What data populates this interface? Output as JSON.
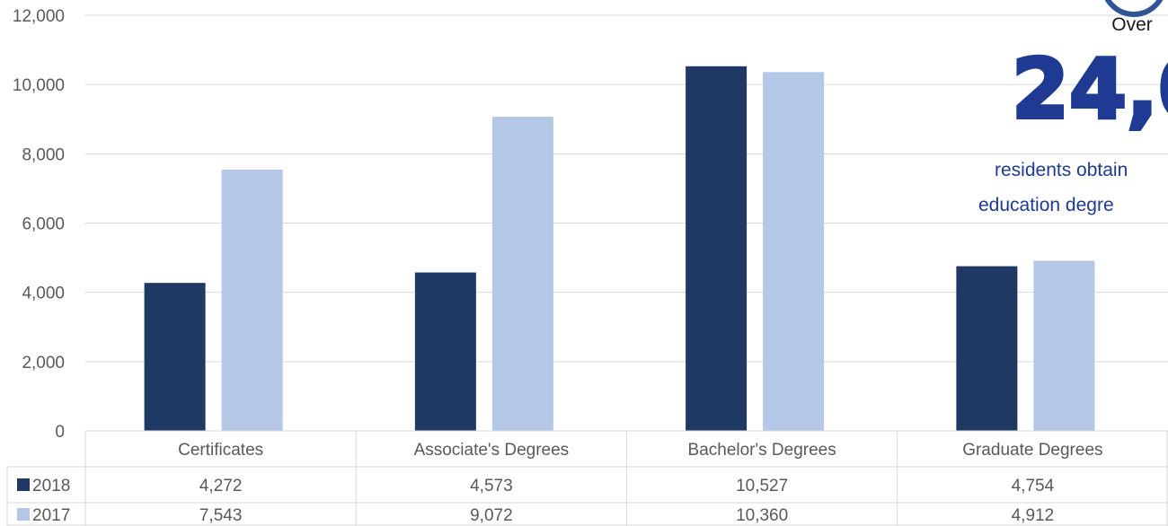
{
  "chart_data": {
    "type": "bar",
    "categories": [
      "Certificates",
      "Associate's Degrees",
      "Bachelor's Degrees",
      "Graduate Degrees"
    ],
    "series": [
      {
        "name": "2018",
        "color": "#203864",
        "values": [
          4272,
          4573,
          10527,
          4754
        ],
        "display": [
          "4,272",
          "4,573",
          "10,527",
          "4,754"
        ]
      },
      {
        "name": "2017",
        "color": "#b4c7e7",
        "values": [
          7543,
          9072,
          10360,
          4912
        ],
        "display": [
          "7,543",
          "9,072",
          "10,360",
          "4,912"
        ]
      }
    ],
    "y_ticks": [
      "0",
      "2,000",
      "4,000",
      "6,000",
      "8,000",
      "10,000",
      "12,000"
    ],
    "ylim": [
      0,
      12000
    ],
    "grid": true,
    "legend": "data-table"
  },
  "callout": {
    "over": "Over",
    "big_number": "24,0",
    "line1": "residents obtain",
    "line2": "education degre",
    "circle_color": "#2f5597",
    "text_color": "#1f3a93"
  }
}
